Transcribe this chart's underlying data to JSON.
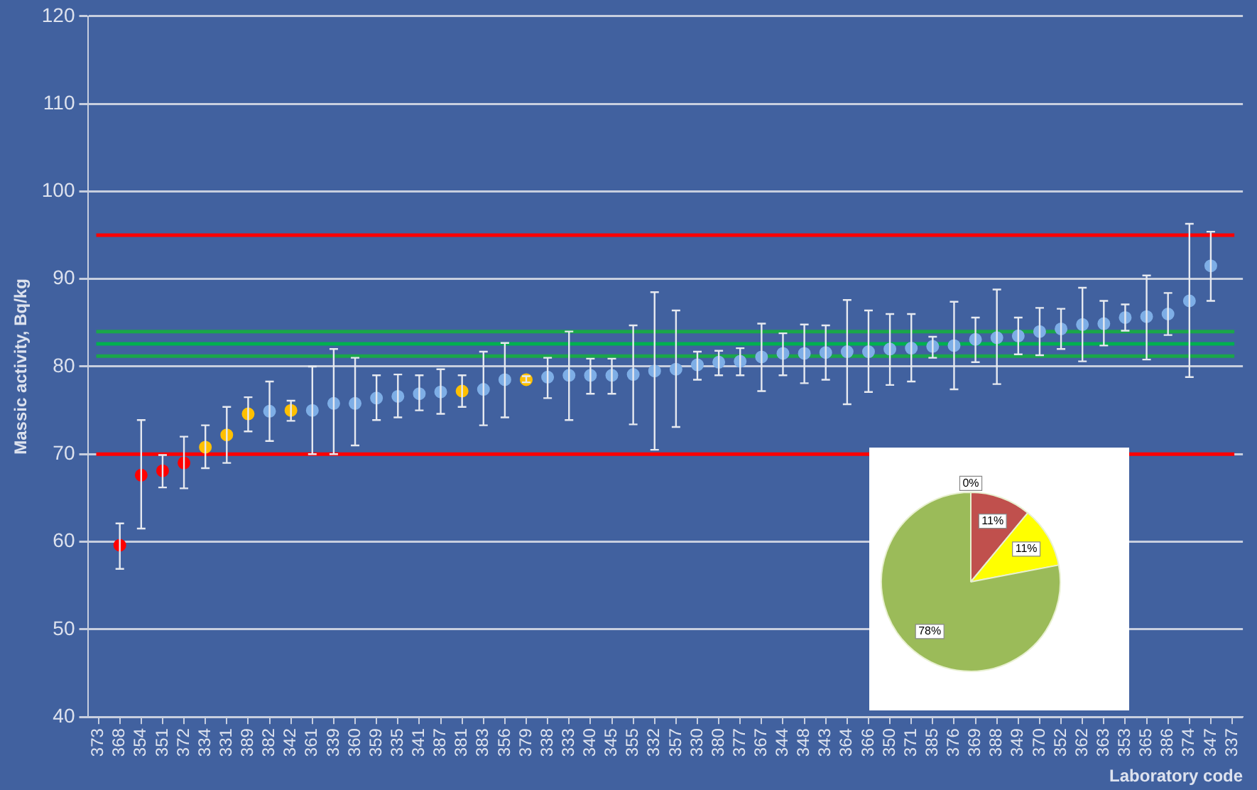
{
  "chart_data": [
    {
      "type": "scatter",
      "xlabel": "Laboratory code",
      "ylabel": "Massic activity, Bq/kg",
      "categories": [
        "373",
        "368",
        "354",
        "351",
        "372",
        "334",
        "331",
        "389",
        "382",
        "342",
        "361",
        "339",
        "360",
        "359",
        "335",
        "341",
        "387",
        "381",
        "383",
        "356",
        "379",
        "338",
        "333",
        "340",
        "345",
        "355",
        "332",
        "357",
        "330",
        "380",
        "377",
        "367",
        "344",
        "348",
        "343",
        "364",
        "366",
        "350",
        "371",
        "385",
        "376",
        "369",
        "388",
        "349",
        "370",
        "352",
        "362",
        "363",
        "353",
        "365",
        "386",
        "374",
        "347",
        "337"
      ],
      "ylim": [
        40,
        120
      ],
      "yticks": [
        40,
        50,
        60,
        70,
        80,
        90,
        100,
        110,
        120
      ],
      "grid": "y",
      "legend": false,
      "marker": "circle",
      "series": [
        {
          "color": "#ff0000",
          "values": [
            null,
            59.6,
            67.6,
            68.1,
            69.0,
            null,
            null,
            null,
            null,
            null,
            null,
            null,
            null,
            null,
            null,
            null,
            null,
            null,
            null,
            null,
            null,
            null,
            null,
            null,
            null,
            null,
            null,
            null,
            null,
            null,
            null,
            null,
            null,
            null,
            null,
            null,
            null,
            null,
            null,
            null,
            null,
            null,
            null,
            null,
            null,
            null,
            null,
            null,
            null,
            null,
            null,
            null,
            null,
            null
          ],
          "errors": [
            null,
            [
              56.9,
              62.1
            ],
            [
              61.5,
              73.9
            ],
            [
              66.2,
              69.9
            ],
            [
              66.1,
              72.0
            ],
            null,
            null,
            null,
            null,
            null,
            null,
            null,
            null,
            null,
            null,
            null,
            null,
            null,
            null,
            null,
            null,
            null,
            null,
            null,
            null,
            null,
            null,
            null,
            null,
            null,
            null,
            null,
            null,
            null,
            null,
            null,
            null,
            null,
            null,
            null,
            null,
            null,
            null,
            null,
            null,
            null,
            null,
            null,
            null,
            null,
            null,
            null,
            null,
            null
          ]
        },
        {
          "color": "#ffc000",
          "values": [
            null,
            null,
            null,
            null,
            null,
            70.8,
            72.2,
            74.6,
            null,
            75.0,
            null,
            null,
            null,
            null,
            null,
            null,
            null,
            77.2,
            null,
            null,
            78.5,
            null,
            null,
            null,
            null,
            null,
            null,
            null,
            null,
            null,
            null,
            null,
            null,
            null,
            null,
            null,
            null,
            null,
            null,
            null,
            null,
            null,
            null,
            null,
            null,
            null,
            null,
            null,
            null,
            null,
            null,
            null,
            null,
            null
          ],
          "errors": [
            null,
            null,
            null,
            null,
            null,
            [
              68.4,
              73.3
            ],
            [
              69.0,
              75.4
            ],
            [
              72.6,
              76.5
            ],
            null,
            [
              73.8,
              76.1
            ],
            null,
            null,
            null,
            null,
            null,
            null,
            null,
            [
              75.4,
              79.0
            ],
            null,
            null,
            [
              78.2,
              78.9
            ],
            null,
            null,
            null,
            null,
            null,
            null,
            null,
            null,
            null,
            null,
            null,
            null,
            null,
            null,
            null,
            null,
            null,
            null,
            null,
            null,
            null,
            null,
            null,
            null,
            null,
            null,
            null,
            null,
            null,
            null,
            null,
            null,
            null
          ]
        },
        {
          "color": "#7eaee6",
          "values": [
            null,
            null,
            null,
            null,
            null,
            null,
            null,
            null,
            74.9,
            null,
            75.0,
            75.8,
            75.8,
            76.4,
            76.6,
            76.9,
            77.1,
            null,
            77.4,
            78.5,
            null,
            78.8,
            79.0,
            79.0,
            79.0,
            79.1,
            79.5,
            79.7,
            80.2,
            80.5,
            80.6,
            81.1,
            81.5,
            81.5,
            81.6,
            81.7,
            81.7,
            82.0,
            82.1,
            82.3,
            82.4,
            83.1,
            83.3,
            83.5,
            84.0,
            84.3,
            84.8,
            84.9,
            85.6,
            85.7,
            86.0,
            87.5,
            91.5,
            null
          ],
          "errors": [
            null,
            null,
            null,
            null,
            null,
            null,
            null,
            null,
            [
              71.5,
              78.3
            ],
            null,
            [
              70.0,
              80.0
            ],
            [
              70.0,
              82.0
            ],
            [
              71.0,
              81.0
            ],
            [
              73.9,
              79.0
            ],
            [
              74.2,
              79.1
            ],
            [
              75.0,
              79.0
            ],
            [
              74.6,
              79.7
            ],
            null,
            [
              73.3,
              81.7
            ],
            [
              74.2,
              82.7
            ],
            null,
            [
              76.4,
              81.0
            ],
            [
              73.9,
              84.0
            ],
            [
              76.9,
              80.9
            ],
            [
              76.9,
              80.9
            ],
            [
              73.4,
              84.7
            ],
            [
              70.5,
              88.5
            ],
            [
              73.1,
              86.4
            ],
            [
              78.5,
              81.7
            ],
            [
              79.0,
              81.8
            ],
            [
              79.0,
              82.1
            ],
            [
              77.2,
              84.9
            ],
            [
              79.0,
              83.8
            ],
            [
              78.1,
              84.8
            ],
            [
              78.5,
              84.7
            ],
            [
              75.7,
              87.6
            ],
            [
              77.1,
              86.4
            ],
            [
              77.9,
              86.0
            ],
            [
              78.3,
              86.0
            ],
            [
              81.0,
              83.4
            ],
            [
              77.4,
              87.4
            ],
            [
              80.5,
              85.6
            ],
            [
              78.0,
              88.8
            ],
            [
              81.4,
              85.6
            ],
            [
              81.3,
              86.7
            ],
            [
              82.0,
              86.6
            ],
            [
              80.6,
              89.0
            ],
            [
              82.4,
              87.5
            ],
            [
              84.1,
              87.1
            ],
            [
              80.8,
              90.4
            ],
            [
              83.6,
              88.4
            ],
            [
              78.8,
              96.3
            ],
            [
              87.5,
              95.4
            ],
            null
          ]
        }
      ],
      "ref_lines": [
        {
          "axis": "y",
          "value": 95,
          "color": "#ff0000"
        },
        {
          "axis": "y",
          "value": 70,
          "color": "#ff0000"
        },
        {
          "axis": "y",
          "value": 84.0,
          "color": "#1aa64a"
        },
        {
          "axis": "y",
          "value": 82.6,
          "color": "#00b050"
        },
        {
          "axis": "y",
          "value": 81.2,
          "color": "#1aa64a"
        }
      ]
    },
    {
      "type": "pie",
      "categories": [
        null,
        null,
        null,
        null
      ],
      "values": [
        0,
        11,
        11,
        78
      ],
      "colors": [
        "#a6a6a6",
        "#c0504d",
        "#ffff00",
        "#9bbb59"
      ],
      "value_labels": [
        "0%",
        "11%",
        "11%",
        "78%"
      ],
      "legend": false
    }
  ]
}
